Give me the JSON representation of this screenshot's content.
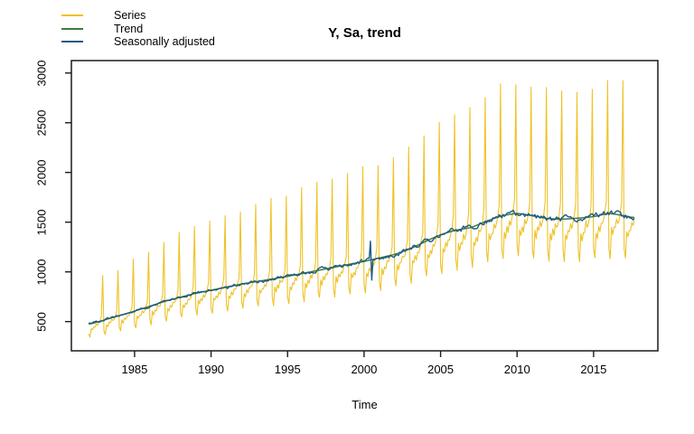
{
  "legend": [
    {
      "label": "Series",
      "color": "#efc228"
    },
    {
      "label": "Trend",
      "color": "#3f7d3b"
    },
    {
      "label": "Seasonally adjusted",
      "color": "#1f5a86"
    }
  ],
  "chart_data": {
    "type": "line",
    "title": "Y, Sa, trend",
    "xlabel": "Time",
    "x_ticks": [
      1985,
      1990,
      1995,
      2000,
      2005,
      2010,
      2015
    ],
    "y_ticks": [
      500,
      1000,
      1500,
      2000,
      2500,
      3000
    ],
    "xlim": [
      1980.87,
      2019.2
    ],
    "ylim": [
      206,
      3125
    ],
    "x_start": 1982.0,
    "frequency": 12,
    "n_points": 429,
    "grid": false,
    "legend_position": "top-left",
    "seasonal_factors": [
      0.79,
      0.72,
      0.9,
      0.86,
      0.92,
      0.9,
      0.96,
      0.94,
      0.97,
      1.02,
      1.09,
      1.85
    ],
    "series_noise_frac": 0.018,
    "sa_noise_frac": 0.016,
    "trend_anchor_years": [
      1982,
      1983,
      1984,
      1985,
      1986,
      1987,
      1988,
      1989,
      1990,
      1991,
      1992,
      1993,
      1994,
      1995,
      1996,
      1997,
      1998,
      1999,
      2000,
      2001,
      2002,
      2003,
      2004,
      2005,
      2006,
      2007,
      2008,
      2009,
      2010,
      2011,
      2012,
      2013,
      2014,
      2015,
      2016,
      2017,
      2017.75
    ],
    "trend_anchor_values": [
      470,
      515,
      560,
      605,
      655,
      705,
      745,
      785,
      815,
      848,
      878,
      903,
      928,
      955,
      985,
      1015,
      1045,
      1075,
      1105,
      1140,
      1175,
      1230,
      1305,
      1375,
      1420,
      1445,
      1510,
      1565,
      1590,
      1565,
      1535,
      1530,
      1540,
      1555,
      1590,
      1565,
      1540
    ],
    "sa_outliers": [
      {
        "month_index": 221,
        "delta": 190
      },
      {
        "month_index": 222,
        "delta": -205
      }
    ],
    "series_meta": [
      {
        "name": "Series",
        "color": "#efc228"
      },
      {
        "name": "Trend",
        "color": "#3f7d3b"
      },
      {
        "name": "Seasonally adjusted",
        "color": "#1f5a86"
      }
    ]
  }
}
